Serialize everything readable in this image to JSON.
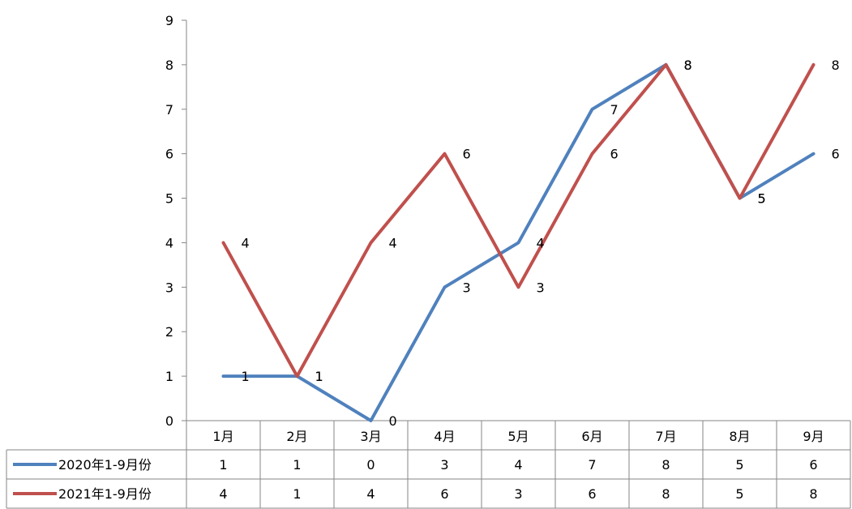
{
  "chart_data": {
    "type": "line",
    "categories": [
      "1月",
      "2月",
      "3月",
      "4月",
      "5月",
      "6月",
      "7月",
      "8月",
      "9月"
    ],
    "series": [
      {
        "name": "2020年1-9月份",
        "values": [
          1,
          1,
          0,
          3,
          4,
          7,
          8,
          5,
          6
        ],
        "color": "#4F81BD"
      },
      {
        "name": "2021年1-9月份",
        "values": [
          4,
          1,
          4,
          6,
          3,
          6,
          8,
          5,
          8
        ],
        "color": "#C0504D"
      }
    ],
    "ylim": [
      0,
      9
    ],
    "yticks": [
      0,
      1,
      2,
      3,
      4,
      5,
      6,
      7,
      8,
      9
    ],
    "grid": false,
    "data_table": true,
    "data_labels": true
  }
}
